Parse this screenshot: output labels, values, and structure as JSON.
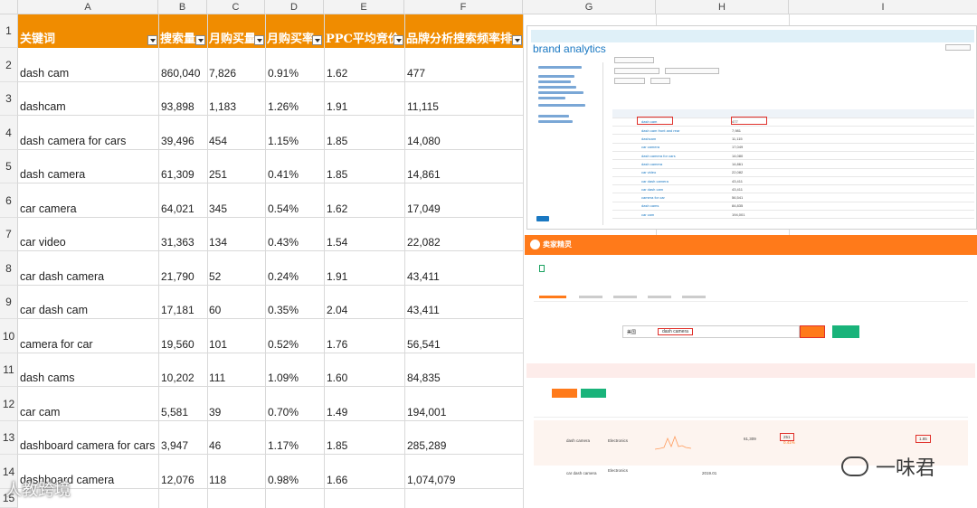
{
  "sheet": {
    "columns": [
      "A",
      "B",
      "C",
      "D",
      "E",
      "F",
      "G",
      "H",
      "I"
    ],
    "row_numbers": [
      "1",
      "2",
      "3",
      "4",
      "5",
      "6",
      "7",
      "8",
      "9",
      "10",
      "11",
      "12",
      "13",
      "14",
      "15"
    ],
    "headers": [
      "关键词",
      "搜索量",
      "月购买量",
      "月购买率",
      "PPC平均竞价",
      "品牌分析搜索频率排"
    ],
    "rows": [
      {
        "keyword": "dash cam",
        "search": "860,040",
        "monthly": "7,826",
        "rate": "0.91%",
        "ppc": "1.62",
        "rank": "477"
      },
      {
        "keyword": "dashcam",
        "search": "93,898",
        "monthly": "1,183",
        "rate": "1.26%",
        "ppc": "1.91",
        "rank": "11,115"
      },
      {
        "keyword": "dash camera for cars",
        "search": "39,496",
        "monthly": "454",
        "rate": "1.15%",
        "ppc": "1.85",
        "rank": "14,080"
      },
      {
        "keyword": "dash camera",
        "search": "61,309",
        "monthly": "251",
        "rate": "0.41%",
        "ppc": "1.85",
        "rank": "14,861"
      },
      {
        "keyword": "car camera",
        "search": "64,021",
        "monthly": "345",
        "rate": "0.54%",
        "ppc": "1.62",
        "rank": "17,049"
      },
      {
        "keyword": "car video",
        "search": "31,363",
        "monthly": "134",
        "rate": "0.43%",
        "ppc": "1.54",
        "rank": "22,082"
      },
      {
        "keyword": "car dash camera",
        "search": "21,790",
        "monthly": "52",
        "rate": "0.24%",
        "ppc": "1.91",
        "rank": "43,411"
      },
      {
        "keyword": "car dash cam",
        "search": "17,181",
        "monthly": "60",
        "rate": "0.35%",
        "ppc": "2.04",
        "rank": "43,411"
      },
      {
        "keyword": "camera for car",
        "search": "19,560",
        "monthly": "101",
        "rate": "0.52%",
        "ppc": "1.76",
        "rank": "56,541"
      },
      {
        "keyword": "dash cams",
        "search": "10,202",
        "monthly": "111",
        "rate": "1.09%",
        "ppc": "1.60",
        "rank": "84,835"
      },
      {
        "keyword": "car cam",
        "search": "5,581",
        "monthly": "39",
        "rate": "0.70%",
        "ppc": "1.49",
        "rank": "194,001"
      },
      {
        "keyword": "dashboard camera for cars",
        "search": "3,947",
        "monthly": "46",
        "rate": "1.17%",
        "ppc": "1.85",
        "rank": "285,289"
      },
      {
        "keyword": "dashboard camera",
        "search": "12,076",
        "monthly": "118",
        "rate": "0.98%",
        "ppc": "1.66",
        "rank": "1,074,079"
      }
    ],
    "header_color": "#f08c00"
  },
  "brand_analytics": {
    "logo": "brand analytics",
    "table_rows": [
      {
        "term": "dash cam",
        "rank": "477"
      },
      {
        "term": "dash cam front and rear",
        "rank": "7,981"
      },
      {
        "term": "dashcam",
        "rank": "11,115"
      },
      {
        "term": "car camera",
        "rank": "17,049"
      },
      {
        "term": "dash camera for cars",
        "rank": "14,080"
      },
      {
        "term": "dash camera",
        "rank": "14,861"
      },
      {
        "term": "car video",
        "rank": "22,082"
      },
      {
        "term": "car dash camera",
        "rank": "43,411"
      },
      {
        "term": "car dash cam",
        "rank": "43,411"
      },
      {
        "term": "camera for car",
        "rank": "56,541"
      },
      {
        "term": "dash cams",
        "rank": "84,835"
      },
      {
        "term": "car cam",
        "rank": "194,001"
      }
    ]
  },
  "maijia": {
    "brand": "卖家精灵",
    "search_value": "dash camera",
    "market": "美国",
    "category": "Electronics",
    "row_keyword": "dash camera",
    "row2_keyword": "car dash camera",
    "row_search": "61,309",
    "row_purchase": "251",
    "row_rate": "0.41%",
    "row_ppc": "1.85",
    "row2_year": "2019.01",
    "accent": "#ff7a1a"
  },
  "watermarks": {
    "left": "人教跨境",
    "right": "一味君"
  }
}
